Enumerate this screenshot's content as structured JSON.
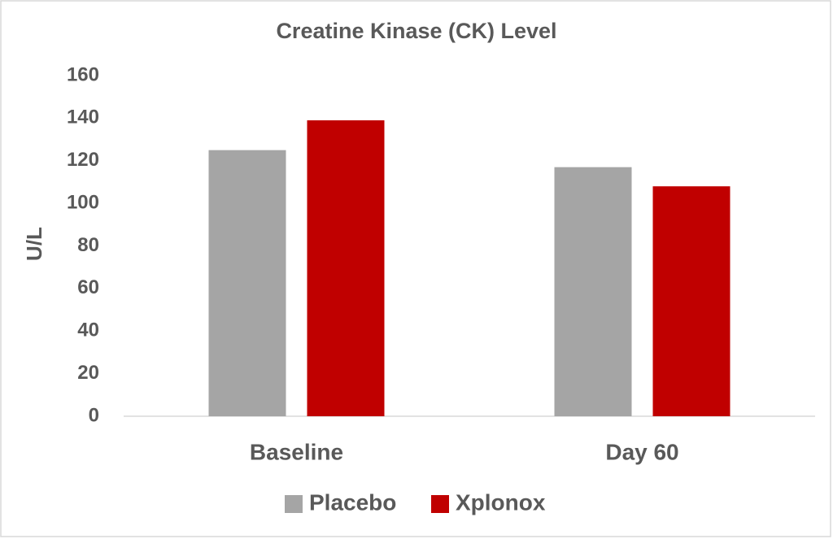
{
  "chart_data": {
    "type": "bar",
    "title": "Creatine Kinase (CK) Level",
    "y_label": "U/L",
    "categories": [
      "Baseline",
      "Day 60"
    ],
    "series": [
      {
        "name": "Placebo",
        "color": "#a5a5a5",
        "values": [
          125,
          117
        ]
      },
      {
        "name": "Xplonox",
        "color": "#c00000",
        "values": [
          139,
          108
        ]
      }
    ],
    "ylim": [
      0,
      160
    ],
    "yticks": [
      0,
      20,
      40,
      60,
      80,
      100,
      120,
      140,
      160
    ],
    "grid": false,
    "legend": "bottom"
  }
}
